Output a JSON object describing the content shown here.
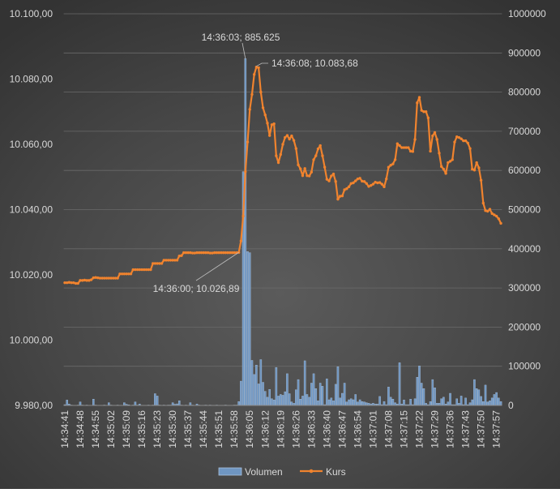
{
  "chart_data": {
    "type": "bar+line",
    "title": "",
    "legend": {
      "placement": "bottom",
      "entries": [
        "Volumen",
        "Kurs"
      ]
    },
    "grid": true,
    "colors": {
      "volumen": "#6f96c2",
      "kurs": "#f0832e",
      "text": "#d9d9d9",
      "grid": "#6a6a6a"
    },
    "y_left": {
      "min": 9980,
      "max": 10100,
      "step": 20,
      "tick_labels": [
        "9.980,00",
        "10.000,00",
        "10.020,00",
        "10.040,00",
        "10.060,00",
        "10.080,00",
        "10.100,00"
      ]
    },
    "y_right": {
      "min": 0,
      "max": 1000000,
      "step": 100000,
      "tick_labels": [
        "0",
        "100000",
        "200000",
        "300000",
        "400000",
        "500000",
        "600000",
        "700000",
        "800000",
        "900000",
        "1000000"
      ]
    },
    "x_tick_labels": [
      "14:34:41",
      "14:34:48",
      "14:34:55",
      "14:35:02",
      "14:35:09",
      "14:35:16",
      "14:35:23",
      "14:35:30",
      "14:35:37",
      "14:35:44",
      "14:35:51",
      "14:35:58",
      "14:36:05",
      "14:36:12",
      "14:36:19",
      "14:36:26",
      "14:36:33",
      "14:36:40",
      "14:36:47",
      "14:36:54",
      "14:37:01",
      "14:37:08",
      "14:37:15",
      "14:37:22",
      "14:37:29",
      "14:37:36",
      "14:37:43",
      "14:37:50",
      "14:37:57"
    ],
    "x_start": "14:34:41",
    "x_end": "14:37:59",
    "series": [
      {
        "name": "Volumen",
        "type": "bar",
        "axis": "right",
        "values": [
          2000,
          13800,
          3500,
          1000,
          500,
          0,
          1000,
          9000,
          1000,
          500,
          1000,
          0,
          500,
          16000,
          1000,
          500,
          0,
          500,
          1000,
          500,
          7000,
          1000,
          500,
          0,
          1000,
          500,
          500,
          7000,
          3000,
          1500,
          500,
          1000,
          9000,
          1000,
          3500,
          500,
          0,
          500,
          1000,
          500,
          1000,
          30000,
          24000,
          1000,
          500,
          1000,
          500,
          1000,
          1000,
          7000,
          3000,
          4000,
          12000,
          1000,
          500,
          1000,
          500,
          7000,
          1000,
          500,
          3500,
          1000,
          500,
          0,
          1000,
          500,
          1000,
          500,
          500,
          1000,
          500,
          500,
          500,
          1000,
          500,
          500,
          500,
          1000,
          1000,
          10000,
          62000,
          597000,
          885625,
          393000,
          390000,
          115000,
          79000,
          103000,
          55000,
          117000,
          59000,
          36000,
          21000,
          41000,
          17000,
          14000,
          97000,
          24000,
          28000,
          26000,
          35000,
          81000,
          30000,
          9000,
          5500,
          40000,
          66000,
          16000,
          24000,
          114000,
          28000,
          21000,
          57000,
          81000,
          43000,
          12000,
          57000,
          49000,
          2000,
          68000,
          14500,
          19000,
          12000,
          54000,
          99000,
          19000,
          31000,
          57000,
          9000,
          14500,
          17000,
          14500,
          28000,
          9000,
          14500,
          10000,
          9000,
          7000,
          5500,
          4000,
          5500,
          3500,
          3500,
          23000,
          2000,
          10000,
          2000,
          47000,
          21000,
          16000,
          7000,
          3500,
          109000,
          3500,
          14000,
          2000,
          2000,
          16000,
          2000,
          17000,
          72000,
          101000,
          57000,
          43000,
          5500,
          2000,
          10000,
          66000,
          45000,
          5500,
          5500,
          17000,
          21000,
          3500,
          9000,
          31000,
          2000,
          2000,
          17000,
          5500,
          24000,
          2000,
          19000,
          2000,
          7000,
          14500,
          66000,
          43000,
          40000,
          23000,
          10000,
          52000,
          9000,
          12000,
          19000,
          28000,
          33000,
          19000,
          10000
        ]
      },
      {
        "name": "Kurs",
        "type": "line",
        "axis": "left",
        "values": [
          10017.6,
          10017.6,
          10017.7,
          10017.6,
          10017.6,
          10017.4,
          10017.4,
          10018.3,
          10018.3,
          10018.4,
          10018.3,
          10018.3,
          10018.5,
          10019.1,
          10019.2,
          10019.1,
          10019.0,
          10019.0,
          10019.0,
          10019.0,
          10019.0,
          10019.0,
          10019.0,
          10019.0,
          10019.0,
          10020.3,
          10020.3,
          10020.3,
          10020.3,
          10020.3,
          10020.3,
          10021.6,
          10021.6,
          10021.6,
          10021.6,
          10021.6,
          10021.6,
          10021.6,
          10021.6,
          10021.6,
          10023.5,
          10023.5,
          10023.5,
          10023.5,
          10023.5,
          10024.5,
          10024.5,
          10024.5,
          10024.5,
          10024.5,
          10024.5,
          10024.5,
          10025.8,
          10025.9,
          10026.8,
          10026.8,
          10026.8,
          10026.8,
          10026.7,
          10026.7,
          10026.8,
          10026.8,
          10026.8,
          10026.8,
          10026.8,
          10026.8,
          10026.7,
          10026.7,
          10026.8,
          10026.8,
          10026.8,
          10026.8,
          10026.8,
          10026.8,
          10026.8,
          10026.8,
          10026.8,
          10026.8,
          10026.8,
          10026.89,
          10030.4,
          10038.0,
          10051.6,
          10060.7,
          10070.7,
          10075.3,
          10081.4,
          10083.68,
          10083.5,
          10076.0,
          10071.2,
          10069.0,
          10066.5,
          10062.7,
          10066.0,
          10066.3,
          10056.5,
          10054.4,
          10056.9,
          10060.0,
          10062.1,
          10062.7,
          10061.6,
          10062.6,
          10061.2,
          10058.7,
          10053.7,
          10052.5,
          10050.4,
          10052.6,
          10050.4,
          10050.3,
          10051.5,
          10055.3,
          10056.5,
          10058.6,
          10059.6,
          10056.5,
          10053.0,
          10049.3,
          10048.8,
          10050.3,
          10050.9,
          10048.6,
          10043.2,
          10044.1,
          10044.2,
          10046.1,
          10046.4,
          10047.0,
          10048.0,
          10048.2,
          10048.8,
          10049.4,
          10049.6,
          10048.7,
          10048.6,
          10048.0,
          10047.1,
          10047.4,
          10047.8,
          10048.4,
          10048.2,
          10048.3,
          10047.8,
          10047.0,
          10049.4,
          10053.0,
          10053.6,
          10054.0,
          10055.3,
          10060.2,
          10059.6,
          10059.0,
          10059.0,
          10059.0,
          10059.0,
          10057.9,
          10057.8,
          10061.5,
          10072.7,
          10074.4,
          10070.4,
          10070.0,
          10070.0,
          10068.1,
          10057.9,
          10062.6,
          10063.6,
          10061.5,
          10057.3,
          10053.2,
          10052.4,
          10051.1,
          10054.4,
          10054.8,
          10055.3,
          10060.7,
          10062.3,
          10062.1,
          10061.7,
          10061.1,
          10061.1,
          10060.4,
          10058.7,
          10052.4,
          10052.1,
          10054.4,
          10052.8,
          10049.0,
          10042.0,
          10039.7,
          10039.5,
          10040.1,
          10038.8,
          10038.4,
          10038.0,
          10037.2,
          10035.8
        ]
      }
    ],
    "annotations": [
      {
        "text": "14:36:03; 885.625",
        "series": "Volumen",
        "x": "14:36:03",
        "y": 885625
      },
      {
        "text": "14:36:08; 10.083,68",
        "series": "Kurs",
        "x": "14:36:08",
        "y": 10083.68
      },
      {
        "text": "14:36:00; 10.026,89",
        "series": "Kurs",
        "x": "14:36:00",
        "y": 10026.89
      }
    ]
  }
}
